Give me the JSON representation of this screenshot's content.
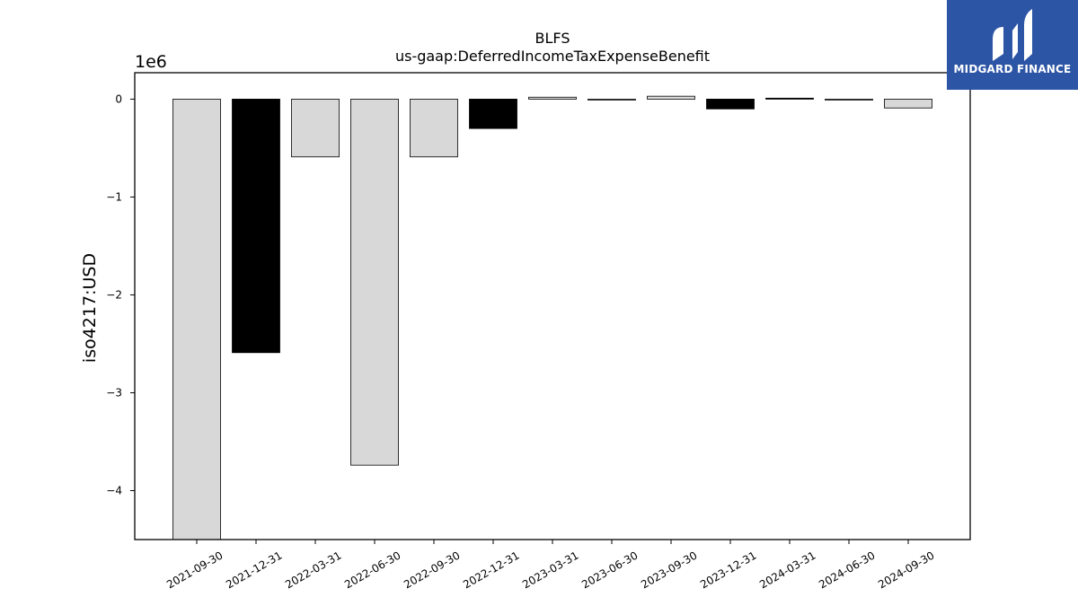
{
  "chart_data": {
    "type": "bar",
    "title": "BLFS",
    "subtitle": "us-gaap:DeferredIncomeTaxExpenseBenefit",
    "ylabel": "iso4217:USD",
    "xlabel": "",
    "offset_text": "1e6",
    "categories": [
      "2021-09-30",
      "2021-12-31",
      "2022-03-31",
      "2022-06-30",
      "2022-09-30",
      "2022-12-31",
      "2023-03-31",
      "2023-06-30",
      "2023-09-30",
      "2023-12-31",
      "2024-03-31",
      "2024-06-30",
      "2024-09-30"
    ],
    "values": [
      -4500000,
      -2590000,
      -590000,
      -3740000,
      -590000,
      -300000,
      20000,
      -5000,
      30000,
      -100000,
      10000,
      -5000,
      -90000
    ],
    "bar_colors": [
      "#d8d8d8",
      "#000000",
      "#d8d8d8",
      "#d8d8d8",
      "#d8d8d8",
      "#000000",
      "#d8d8d8",
      "#d8d8d8",
      "#d8d8d8",
      "#000000",
      "#000000",
      "#d8d8d8",
      "#d8d8d8"
    ],
    "ylim": [
      -4500000,
      270000
    ],
    "yticks": [
      0,
      -1000000,
      -2000000,
      -3000000,
      -4000000
    ],
    "ytick_labels": [
      "0",
      "−1",
      "−2",
      "−3",
      "−4"
    ],
    "grid": false,
    "legend": "none"
  },
  "logo": {
    "text": "MIDGARD FINANCE",
    "color": "#2d55a6"
  }
}
